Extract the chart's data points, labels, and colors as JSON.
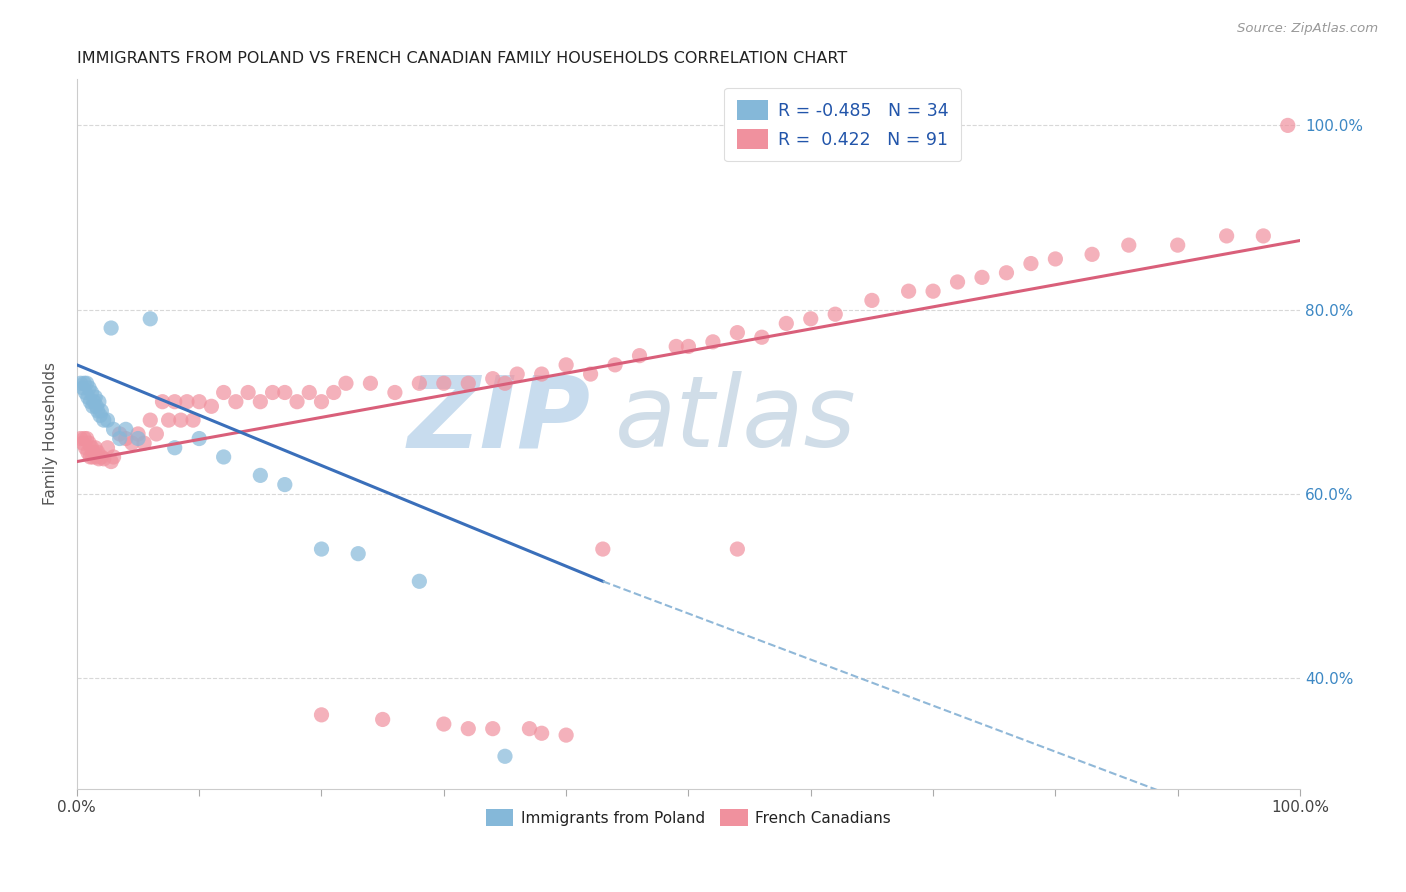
{
  "title": "IMMIGRANTS FROM POLAND VS FRENCH CANADIAN FAMILY HOUSEHOLDS CORRELATION CHART",
  "source": "Source: ZipAtlas.com",
  "ylabel": "Family Households",
  "poland_color": "#85b8d9",
  "french_color": "#f0919e",
  "poland_line_color": "#3a6fba",
  "french_line_color": "#d95f7a",
  "dashed_line_color": "#90b8d8",
  "background_color": "#ffffff",
  "grid_color": "#d8d8d8",
  "right_tick_color": "#3d88c4",
  "poland_R": -0.485,
  "poland_N": 34,
  "french_R": 0.422,
  "french_N": 91,
  "xlim": [
    0.0,
    1.0
  ],
  "ylim": [
    0.28,
    1.05
  ],
  "poland_trend": [
    0.0,
    0.74,
    0.43,
    0.505
  ],
  "french_trend": [
    0.0,
    0.635,
    1.0,
    0.875
  ],
  "dashed_trend": [
    0.43,
    0.505,
    1.0,
    0.22
  ],
  "poland_x": [
    0.003,
    0.005,
    0.006,
    0.007,
    0.008,
    0.009,
    0.01,
    0.011,
    0.012,
    0.013,
    0.014,
    0.015,
    0.016,
    0.017,
    0.018,
    0.019,
    0.02,
    0.022,
    0.025,
    0.028,
    0.03,
    0.035,
    0.04,
    0.05,
    0.06,
    0.08,
    0.1,
    0.12,
    0.15,
    0.17,
    0.2,
    0.23,
    0.28,
    0.35
  ],
  "poland_y": [
    0.72,
    0.715,
    0.72,
    0.71,
    0.72,
    0.705,
    0.715,
    0.7,
    0.71,
    0.695,
    0.7,
    0.705,
    0.695,
    0.69,
    0.7,
    0.685,
    0.69,
    0.68,
    0.68,
    0.78,
    0.67,
    0.66,
    0.67,
    0.66,
    0.79,
    0.65,
    0.66,
    0.64,
    0.62,
    0.61,
    0.54,
    0.535,
    0.505,
    0.315
  ],
  "french_x": [
    0.003,
    0.005,
    0.006,
    0.007,
    0.008,
    0.009,
    0.01,
    0.011,
    0.012,
    0.013,
    0.014,
    0.015,
    0.016,
    0.017,
    0.018,
    0.02,
    0.022,
    0.025,
    0.028,
    0.03,
    0.035,
    0.04,
    0.045,
    0.05,
    0.055,
    0.06,
    0.065,
    0.07,
    0.075,
    0.08,
    0.085,
    0.09,
    0.095,
    0.1,
    0.11,
    0.12,
    0.13,
    0.14,
    0.15,
    0.16,
    0.17,
    0.18,
    0.19,
    0.2,
    0.21,
    0.22,
    0.24,
    0.26,
    0.28,
    0.3,
    0.32,
    0.34,
    0.35,
    0.36,
    0.38,
    0.4,
    0.42,
    0.44,
    0.46,
    0.49,
    0.5,
    0.52,
    0.54,
    0.56,
    0.58,
    0.6,
    0.62,
    0.65,
    0.68,
    0.7,
    0.72,
    0.74,
    0.76,
    0.78,
    0.8,
    0.83,
    0.86,
    0.9,
    0.94,
    0.97,
    0.99,
    0.2,
    0.25,
    0.3,
    0.32,
    0.34,
    0.37,
    0.38,
    0.4,
    0.43,
    0.54
  ],
  "french_y": [
    0.66,
    0.655,
    0.66,
    0.65,
    0.66,
    0.645,
    0.655,
    0.64,
    0.65,
    0.64,
    0.645,
    0.65,
    0.64,
    0.645,
    0.638,
    0.64,
    0.638,
    0.65,
    0.635,
    0.64,
    0.665,
    0.66,
    0.655,
    0.665,
    0.655,
    0.68,
    0.665,
    0.7,
    0.68,
    0.7,
    0.68,
    0.7,
    0.68,
    0.7,
    0.695,
    0.71,
    0.7,
    0.71,
    0.7,
    0.71,
    0.71,
    0.7,
    0.71,
    0.7,
    0.71,
    0.72,
    0.72,
    0.71,
    0.72,
    0.72,
    0.72,
    0.725,
    0.72,
    0.73,
    0.73,
    0.74,
    0.73,
    0.74,
    0.75,
    0.76,
    0.76,
    0.765,
    0.775,
    0.77,
    0.785,
    0.79,
    0.795,
    0.81,
    0.82,
    0.82,
    0.83,
    0.835,
    0.84,
    0.85,
    0.855,
    0.86,
    0.87,
    0.87,
    0.88,
    0.88,
    1.0,
    0.36,
    0.355,
    0.35,
    0.345,
    0.345,
    0.345,
    0.34,
    0.338,
    0.54,
    0.54
  ]
}
